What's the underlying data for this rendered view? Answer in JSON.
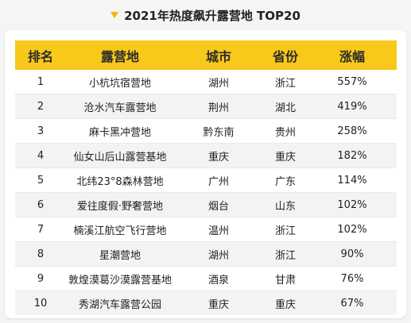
{
  "title": "2021年热度飙升露营地 TOP20",
  "colors": {
    "accent": "#f8c81a",
    "marker": "#f5b800",
    "stripe": "#f3f3f3"
  },
  "chart_data": {
    "type": "table",
    "columns": [
      "排名",
      "露营地",
      "城市",
      "省份",
      "涨幅"
    ],
    "rows": [
      [
        "1",
        "小杭坑宿营地",
        "湖州",
        "浙江",
        "557%"
      ],
      [
        "2",
        "沧水汽车露营地",
        "荆州",
        "湖北",
        "419%"
      ],
      [
        "3",
        "麻卡黑冲营地",
        "黔东南",
        "贵州",
        "258%"
      ],
      [
        "4",
        "仙女山后山露营基地",
        "重庆",
        "重庆",
        "182%"
      ],
      [
        "5",
        "北纬23°8森林营地",
        "广州",
        "广东",
        "114%"
      ],
      [
        "6",
        "爱往度假·野奢营地",
        "烟台",
        "山东",
        "102%"
      ],
      [
        "7",
        "楠溪江航空飞行营地",
        "温州",
        "浙江",
        "102%"
      ],
      [
        "8",
        "星潮营地",
        "湖州",
        "浙江",
        "90%"
      ],
      [
        "9",
        "敦煌漠葛沙漠露营基地",
        "酒泉",
        "甘肃",
        "76%"
      ],
      [
        "10",
        "秀湖汽车露营公园",
        "重庆",
        "重庆",
        "67%"
      ]
    ]
  }
}
